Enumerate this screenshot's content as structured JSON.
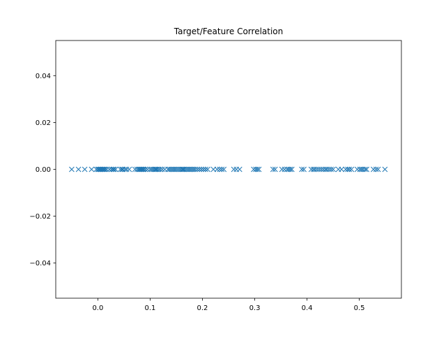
{
  "chart_data": {
    "type": "scatter",
    "title": "Target/Feature Correlation",
    "xlabel": "",
    "ylabel": "",
    "xlim": [
      -0.0805,
      0.5805
    ],
    "ylim": [
      -0.055,
      0.055
    ],
    "x_ticks": [
      0.0,
      0.1,
      0.2,
      0.3,
      0.4,
      0.5
    ],
    "x_tick_labels": [
      "0.0",
      "0.1",
      "0.2",
      "0.3",
      "0.4",
      "0.5"
    ],
    "y_ticks": [
      0.04,
      0.02,
      0.0,
      -0.02,
      -0.04
    ],
    "y_tick_labels": [
      "0.04",
      "0.02",
      "0.00",
      "−0.02",
      "−0.04"
    ],
    "grid": false,
    "marker": "x",
    "color": "#1f77b4",
    "series": [
      {
        "name": "",
        "x": [
          -0.05,
          -0.037,
          -0.025,
          -0.012,
          -0.003,
          0.0,
          0.002,
          0.004,
          0.006,
          0.008,
          0.01,
          0.012,
          0.014,
          0.017,
          0.022,
          0.026,
          0.029,
          0.031,
          0.034,
          0.043,
          0.046,
          0.048,
          0.052,
          0.055,
          0.06,
          0.071,
          0.075,
          0.078,
          0.08,
          0.082,
          0.084,
          0.086,
          0.088,
          0.091,
          0.095,
          0.1,
          0.103,
          0.106,
          0.109,
          0.111,
          0.113,
          0.116,
          0.119,
          0.123,
          0.128,
          0.134,
          0.137,
          0.14,
          0.143,
          0.146,
          0.149,
          0.152,
          0.155,
          0.158,
          0.161,
          0.163,
          0.165,
          0.168,
          0.171,
          0.174,
          0.177,
          0.18,
          0.183,
          0.186,
          0.19,
          0.194,
          0.198,
          0.202,
          0.206,
          0.21,
          0.221,
          0.228,
          0.233,
          0.237,
          0.241,
          0.26,
          0.265,
          0.271,
          0.298,
          0.302,
          0.305,
          0.308,
          0.335,
          0.339,
          0.352,
          0.357,
          0.362,
          0.365,
          0.368,
          0.371,
          0.39,
          0.394,
          0.408,
          0.412,
          0.415,
          0.419,
          0.423,
          0.427,
          0.431,
          0.435,
          0.438,
          0.442,
          0.446,
          0.45,
          0.46,
          0.466,
          0.474,
          0.478,
          0.481,
          0.485,
          0.496,
          0.501,
          0.504,
          0.507,
          0.511,
          0.514,
          0.527,
          0.532,
          0.536,
          0.549
        ],
        "y": [
          0,
          0,
          0,
          0,
          0,
          0,
          0,
          0,
          0,
          0,
          0,
          0,
          0,
          0,
          0,
          0,
          0,
          0,
          0,
          0,
          0,
          0,
          0,
          0,
          0,
          0,
          0,
          0,
          0,
          0,
          0,
          0,
          0,
          0,
          0,
          0,
          0,
          0,
          0,
          0,
          0,
          0,
          0,
          0,
          0,
          0,
          0,
          0,
          0,
          0,
          0,
          0,
          0,
          0,
          0,
          0,
          0,
          0,
          0,
          0,
          0,
          0,
          0,
          0,
          0,
          0,
          0,
          0,
          0,
          0,
          0,
          0,
          0,
          0,
          0,
          0,
          0,
          0,
          0,
          0,
          0,
          0,
          0,
          0,
          0,
          0,
          0,
          0,
          0,
          0,
          0,
          0,
          0,
          0,
          0,
          0,
          0,
          0,
          0,
          0,
          0,
          0,
          0,
          0,
          0,
          0,
          0,
          0,
          0,
          0,
          0,
          0,
          0,
          0,
          0,
          0,
          0,
          0,
          0,
          0
        ]
      }
    ]
  }
}
